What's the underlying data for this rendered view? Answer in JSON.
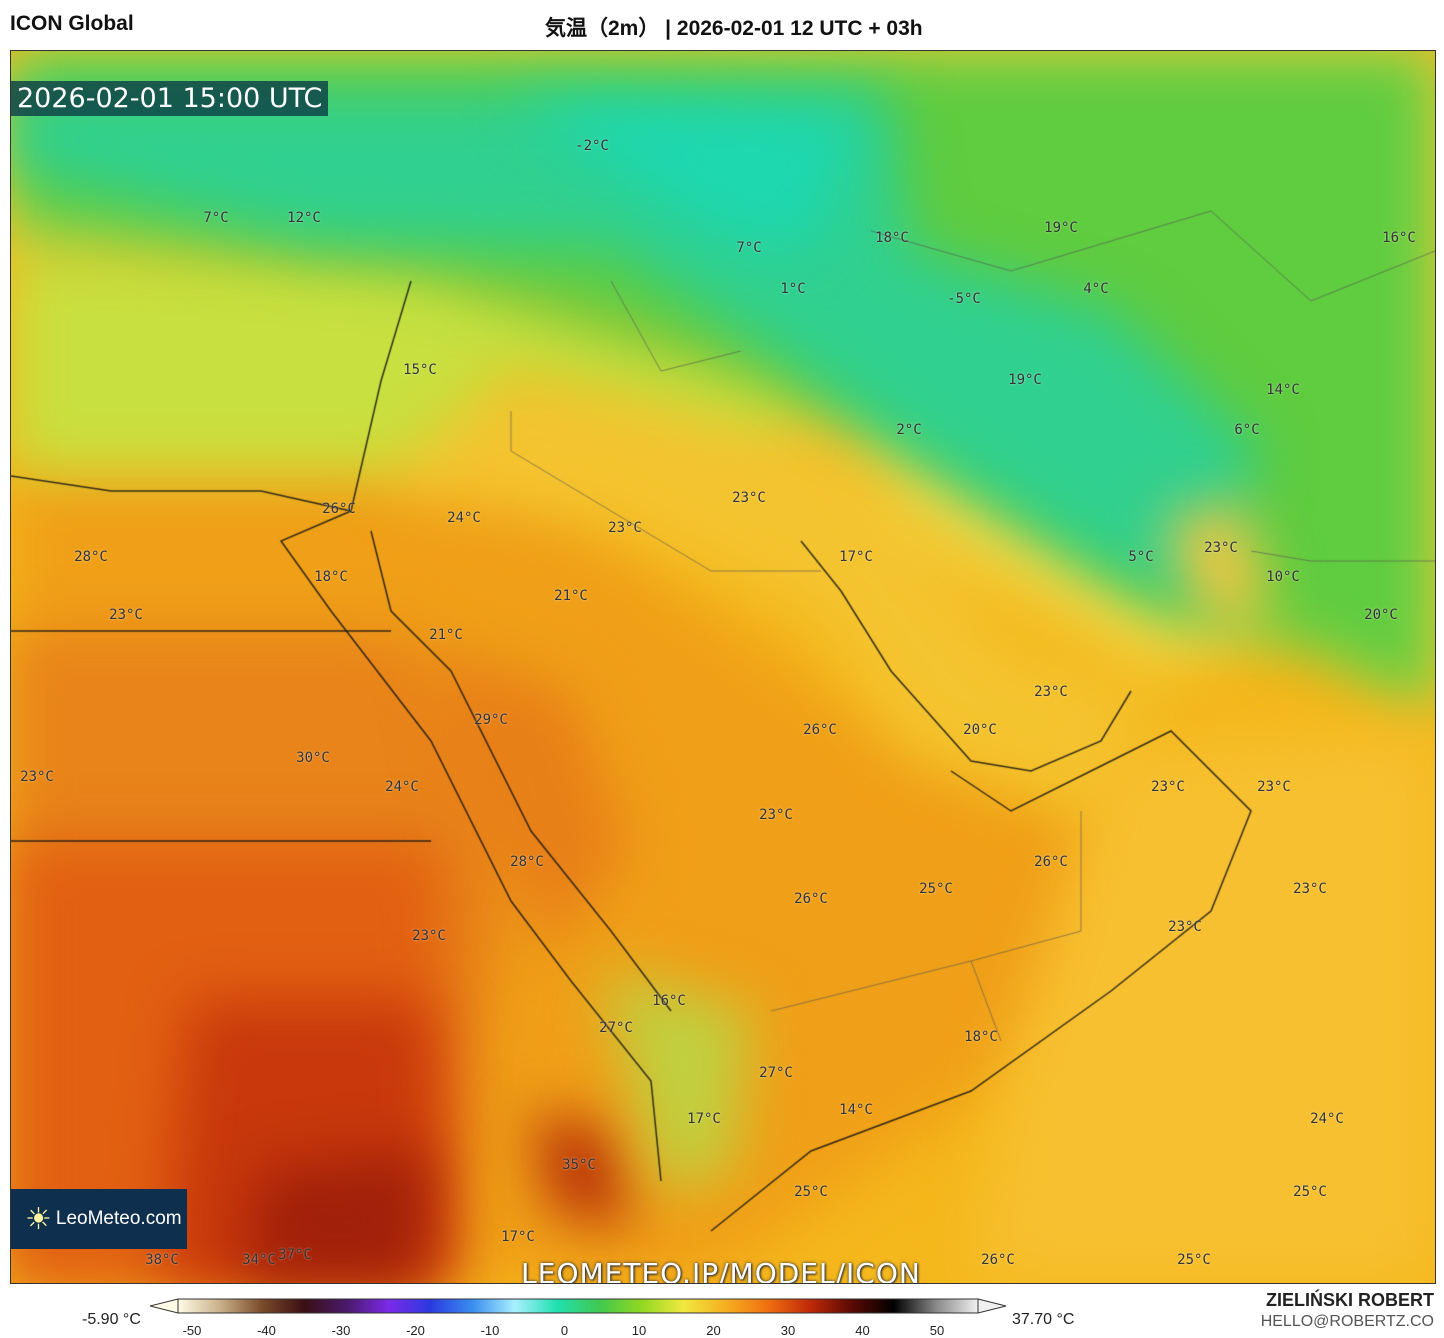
{
  "header": {
    "model": "ICON Global",
    "title": "気温（2m） | 2026-02-01 12 UTC + 03h"
  },
  "map": {
    "valid_time": "2026-02-01 15:00 UTC",
    "watermark": "LEOMETEO.JP/MODEL/ICON",
    "logo": "LeoMeteo.com",
    "labels": [
      "-2°C",
      "7°C",
      "12°C",
      "18°C",
      "19°C",
      "16°C",
      "7°C",
      "1°C",
      "-5°C",
      "4°C",
      "15°C",
      "19°C",
      "14°C",
      "2°C",
      "6°C",
      "23°C",
      "26°C",
      "24°C",
      "23°C",
      "17°C",
      "5°C",
      "23°C",
      "28°C",
      "18°C",
      "10°C",
      "21°C",
      "20°C",
      "23°C",
      "21°C",
      "23°C",
      "29°C",
      "26°C",
      "20°C",
      "30°C",
      "23°C",
      "24°C",
      "23°C",
      "23°C",
      "23°C",
      "28°C",
      "26°C",
      "25°C",
      "23°C",
      "26°C",
      "23°C",
      "23°C",
      "16°C",
      "27°C",
      "18°C",
      "27°C",
      "14°C",
      "24°C",
      "17°C",
      "35°C",
      "25°C",
      "25°C",
      "17°C",
      "38°C",
      "34°C",
      "37°C",
      "26°C",
      "25°C"
    ]
  },
  "colorbar": {
    "min_value": "-5.90 °C",
    "max_value": "37.70 °C",
    "ticks": [
      "-50",
      "-40",
      "-30",
      "-20",
      "-10",
      "0",
      "10",
      "20",
      "30",
      "40",
      "50"
    ],
    "colors": [
      "#fffbe6",
      "#c9b08a",
      "#7a4a2a",
      "#3a0f14",
      "#4a1a6a",
      "#7a2ae8",
      "#2a3ae0",
      "#3a8ef0",
      "#a8f0ff",
      "#20e0b0",
      "#40c850",
      "#90d820",
      "#f0e840",
      "#f5b020",
      "#f07010",
      "#c02a08",
      "#5a0a04",
      "#000000",
      "#888888",
      "#f0f0f0"
    ]
  },
  "credit": {
    "author": "ZIELIŃSKI ROBERT",
    "email": "HELLO@ROBERTZ.CO"
  }
}
